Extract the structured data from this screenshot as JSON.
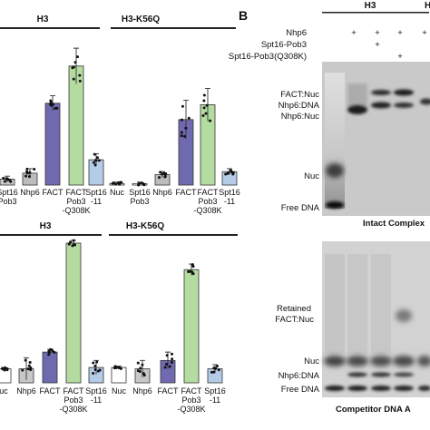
{
  "panel_b_label": "B",
  "panel_a": {
    "top": {
      "header_left": "H3",
      "header_right": "H3-K56Q",
      "x_labels_left": [
        [
          "Spt16",
          "Pob3"
        ],
        [
          "Nhp6"
        ],
        [
          "FACT"
        ],
        [
          "FACT",
          "Pob3",
          "-Q308K"
        ],
        [
          "Spt16",
          "-11"
        ]
      ],
      "x_labels_right": [
        [
          "Nuc"
        ],
        [
          "Spt16",
          "Pob3"
        ],
        [
          "Nhp6"
        ],
        [
          "FACT"
        ],
        [
          "FACT",
          "Pob3",
          "-Q308K"
        ],
        [
          "Spt16",
          "-11"
        ]
      ]
    },
    "bottom": {
      "header_left": "H3",
      "header_right": "H3-K56Q",
      "x_labels_left": [
        [
          "uc"
        ],
        [
          "Nhp6"
        ],
        [
          "FACT"
        ],
        [
          "FACT",
          "Pob3",
          "-Q308K"
        ],
        [
          "Spt16",
          "-11"
        ]
      ],
      "x_labels_right": [
        [
          "Nuc"
        ],
        [
          "Nhp6"
        ],
        [
          "FACT"
        ],
        [
          "FACT",
          "Pob3",
          "-Q308K"
        ],
        [
          "Spt16",
          "-11"
        ]
      ]
    }
  },
  "chart_data": [
    {
      "type": "bar",
      "title": "",
      "ylim": [
        0,
        100
      ],
      "groups": [
        {
          "header": "H3",
          "categories": [
            "Spt16-Pob3",
            "Nhp6",
            "FACT",
            "FACT Pob3-Q308K",
            "Spt16-11"
          ],
          "values": [
            4,
            8,
            55,
            80,
            17
          ],
          "errors": [
            2,
            3,
            5,
            12,
            4
          ],
          "colors": [
            "#c8c8c8",
            "#bcbcbc",
            "#6f6ab0",
            "#b4dca0",
            "#b4cce8"
          ]
        },
        {
          "header": "H3-K56Q",
          "categories": [
            "Nuc",
            "Spt16-Pob3",
            "Nhp6",
            "FACT",
            "FACT Pob3-Q308K",
            "Spt16-11"
          ],
          "values": [
            1,
            1,
            7,
            44,
            54,
            9
          ],
          "errors": [
            1,
            1,
            2,
            13,
            11,
            2
          ],
          "colors": [
            "#ffffff",
            "#ffffff",
            "#bcbcbc",
            "#6f6ab0",
            "#b4dca0",
            "#b4cce8"
          ]
        }
      ]
    },
    {
      "type": "bar",
      "title": "",
      "ylim": [
        0,
        100
      ],
      "groups": [
        {
          "header": "H3",
          "categories": [
            "Nuc",
            "Nhp6",
            "FACT",
            "FACT Pob3-Q308K",
            "Spt16-11"
          ],
          "values": [
            10,
            10,
            22,
            100,
            11
          ],
          "errors": [
            1,
            8,
            2,
            2,
            5
          ],
          "colors": [
            "#ffffff",
            "#c8c8c8",
            "#6f6ab0",
            "#b4dca0",
            "#b4cce8"
          ]
        },
        {
          "header": "H3-K56Q",
          "categories": [
            "Nuc",
            "Nhp6",
            "FACT",
            "FACT Pob3-Q308K",
            "Spt16-11"
          ],
          "values": [
            11,
            10,
            16,
            81,
            10
          ],
          "errors": [
            1,
            6,
            6,
            4,
            3
          ],
          "colors": [
            "#ffffff",
            "#c8c8c8",
            "#6f6ab0",
            "#b4dca0",
            "#b4cce8"
          ]
        }
      ]
    }
  ],
  "gel": {
    "header_h3": "H3",
    "header_h3_right": "H",
    "row_labels": [
      "Nhp6",
      "Spt16-Pob3",
      "Spt16-Pob3(Q308K)"
    ],
    "row_marks": [
      [
        "+",
        "+",
        "+"
      ],
      [
        "+"
      ],
      [
        "+"
      ]
    ],
    "right_lane_marks": [
      "+"
    ],
    "intact": {
      "labels": [
        "FACT:Nuc",
        "Nhp6:DNA",
        "Nhp6:Nuc",
        "Nuc",
        "Free DNA"
      ],
      "caption": "Intact Complex"
    },
    "competitor": {
      "labels": [
        "Retained",
        "FACT:Nuc",
        "Nuc",
        "Nhp6:DNA",
        "Free DNA"
      ],
      "caption": "Competitor DNA A"
    }
  }
}
